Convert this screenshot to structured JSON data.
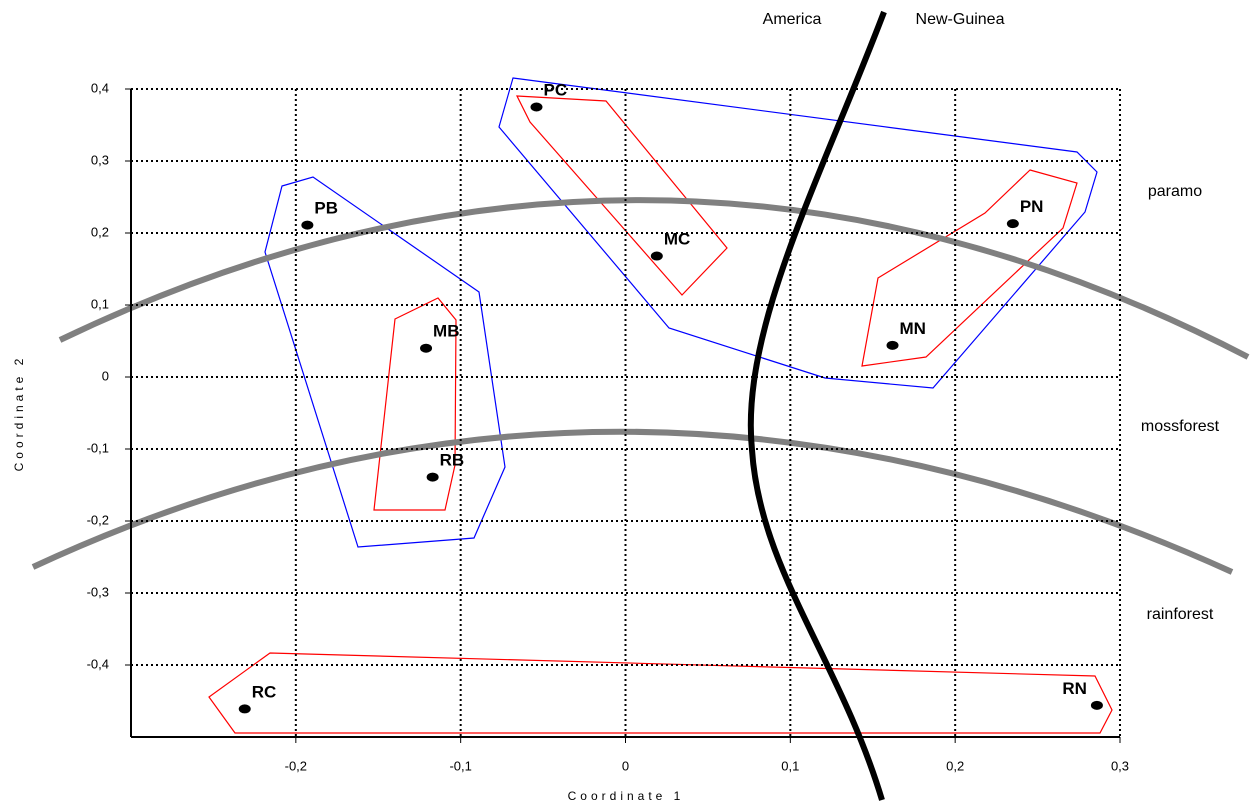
{
  "chart_data": {
    "type": "scatter",
    "x_label": "Coordinate 1",
    "y_label": "Coordinate 2",
    "labels": [
      "PB",
      "MB",
      "RB",
      "PC",
      "MC",
      "PN",
      "MN",
      "RC",
      "RN"
    ],
    "x": [
      -0.193,
      -0.121,
      -0.117,
      -0.054,
      0.019,
      0.235,
      0.162,
      -0.231,
      0.286
    ],
    "values": [
      0.211,
      0.04,
      -0.139,
      0.375,
      0.168,
      0.213,
      0.044,
      -0.461,
      -0.456
    ],
    "color": "#000000",
    "xlim": [
      -0.3,
      0.3
    ],
    "ylim": [
      -0.5,
      0.4
    ],
    "xticks": [
      {
        "value": -0.2,
        "label": "-0,2"
      },
      {
        "value": -0.1,
        "label": "-0,1"
      },
      0,
      {
        "value": 0.1,
        "label": "0,1"
      },
      {
        "value": 0.2,
        "label": "0,2"
      },
      {
        "value": 0.3,
        "label": "0,3"
      }
    ],
    "yticks": [
      {
        "value": 0.4,
        "label": "0,4"
      },
      {
        "value": 0.3,
        "label": "0,3"
      },
      {
        "value": 0.2,
        "label": "0,2"
      },
      {
        "value": 0.1,
        "label": "0,1"
      },
      0,
      {
        "value": -0.1,
        "label": "-0,1"
      },
      {
        "value": -0.2,
        "label": "-0,2"
      },
      {
        "value": -0.3,
        "label": "-0,3"
      },
      {
        "value": -0.4,
        "label": "-0,4"
      }
    ],
    "grid": true,
    "annotations": [
      "America",
      "New-Guinea",
      "paramo",
      "mossforest",
      "rainforest"
    ]
  }
}
